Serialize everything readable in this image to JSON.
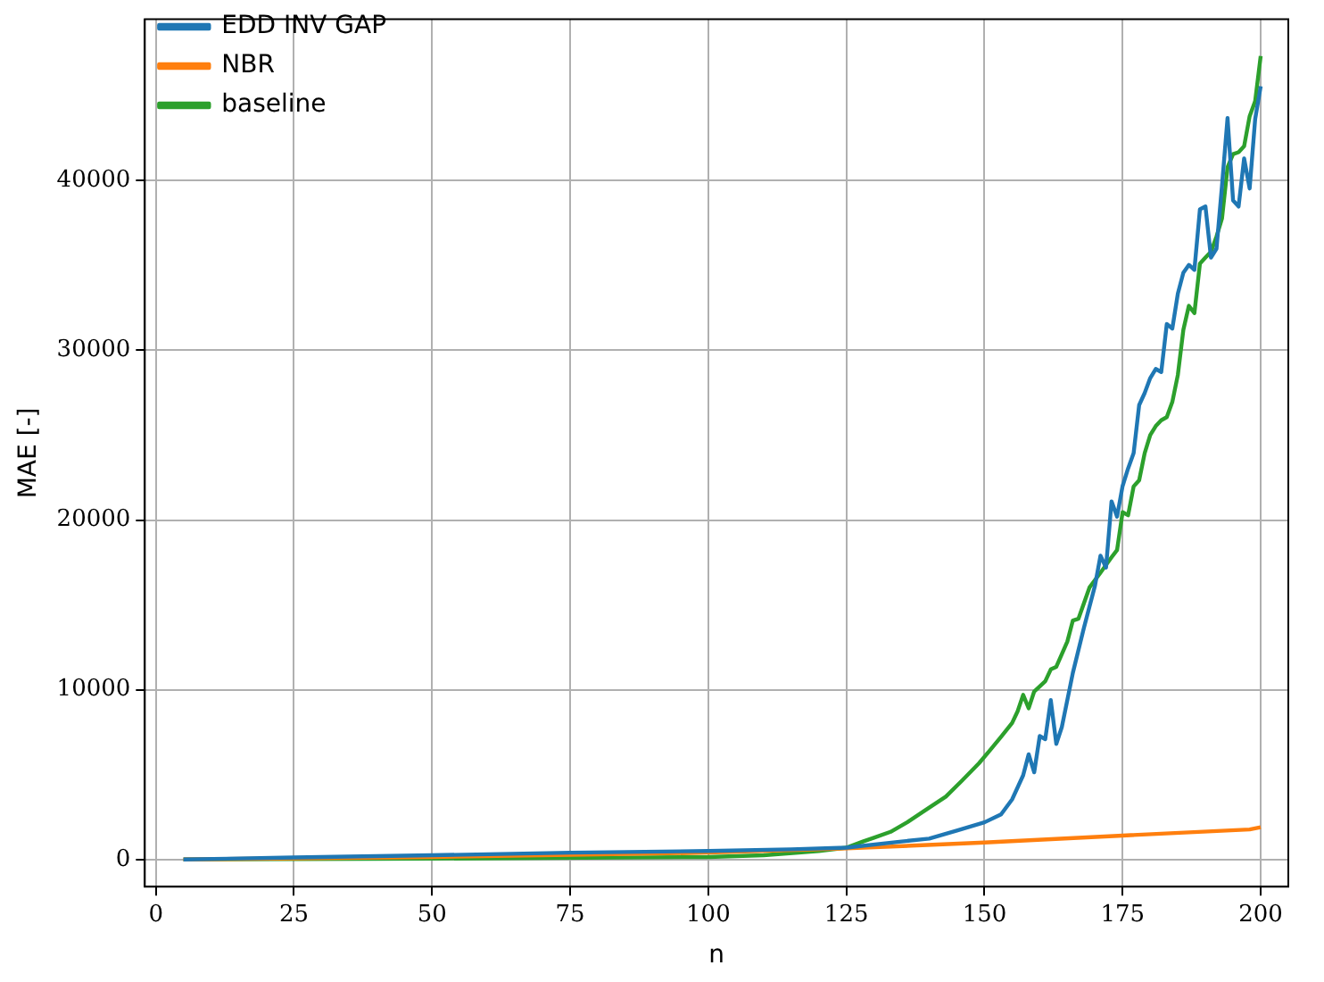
{
  "chart_data": {
    "type": "line",
    "xlabel": "n",
    "ylabel": "MAE [-]",
    "xlim": [
      -2,
      205
    ],
    "ylim": [
      -1600,
      49500
    ],
    "xticks": [
      0,
      25,
      50,
      75,
      100,
      125,
      150,
      175,
      200
    ],
    "yticks": [
      0,
      10000,
      20000,
      30000,
      40000
    ],
    "grid": true,
    "legend": "top left",
    "marker": "none",
    "line_style": "solid",
    "series": [
      {
        "name": "EDD INV GAP",
        "color": "#1f77b4",
        "x": [
          5,
          25,
          50,
          75,
          100,
          115,
          125,
          135,
          140,
          145,
          150,
          153,
          155,
          157,
          158,
          159,
          160,
          161,
          162,
          163,
          164,
          166,
          168,
          170,
          171,
          172,
          173,
          174,
          175,
          176,
          177,
          178,
          179,
          180,
          181,
          182,
          183,
          184,
          185,
          186,
          187,
          188,
          189,
          190,
          191,
          192,
          193,
          194,
          195,
          196,
          197,
          198,
          199,
          200
        ],
        "values": [
          0,
          120,
          250,
          400,
          500,
          600,
          700,
          1060,
          1230,
          1700,
          2190,
          2660,
          3540,
          4960,
          6200,
          5140,
          7270,
          7090,
          9390,
          6810,
          7800,
          11000,
          13650,
          16130,
          17900,
          17200,
          21100,
          20200,
          22000,
          23040,
          23940,
          26770,
          27480,
          28360,
          28900,
          28720,
          31550,
          31280,
          33330,
          34570,
          35030,
          34740,
          38300,
          38470,
          35460,
          35990,
          39710,
          43680,
          38830,
          38470,
          41300,
          39530,
          43620,
          45560
        ]
      },
      {
        "name": "NBR",
        "color": "#ff7f0e",
        "x": [
          5,
          25,
          50,
          75,
          100,
          125,
          150,
          175,
          198,
          200
        ],
        "values": [
          0,
          70,
          150,
          270,
          400,
          650,
          1000,
          1410,
          1770,
          1900
        ]
      },
      {
        "name": "baseline",
        "color": "#2ca02c",
        "x": [
          5,
          50,
          100,
          110,
          120,
          125,
          128,
          130,
          133,
          136,
          140,
          143,
          146,
          149,
          151,
          153,
          155,
          156,
          157,
          158,
          159,
          161,
          162,
          163,
          165,
          166,
          167,
          169,
          171,
          173,
          174,
          175,
          176,
          177,
          178,
          179,
          180,
          181,
          182,
          183,
          184,
          185,
          186,
          187,
          188,
          189,
          190,
          191,
          192,
          193,
          194,
          195,
          196,
          197,
          198,
          199,
          200
        ],
        "values": [
          0,
          50,
          150,
          250,
          500,
          700,
          1060,
          1280,
          1630,
          2190,
          3060,
          3700,
          4670,
          5670,
          6440,
          7230,
          8040,
          8730,
          9700,
          8910,
          9900,
          10500,
          11200,
          11350,
          12840,
          14080,
          14180,
          16020,
          16900,
          17800,
          18230,
          20460,
          20280,
          21980,
          22340,
          23940,
          25000,
          25530,
          25880,
          26060,
          26950,
          28540,
          31200,
          32620,
          32190,
          35110,
          35460,
          35810,
          36700,
          37770,
          40780,
          41560,
          41670,
          42020,
          43790,
          44680,
          47340
        ]
      }
    ]
  }
}
